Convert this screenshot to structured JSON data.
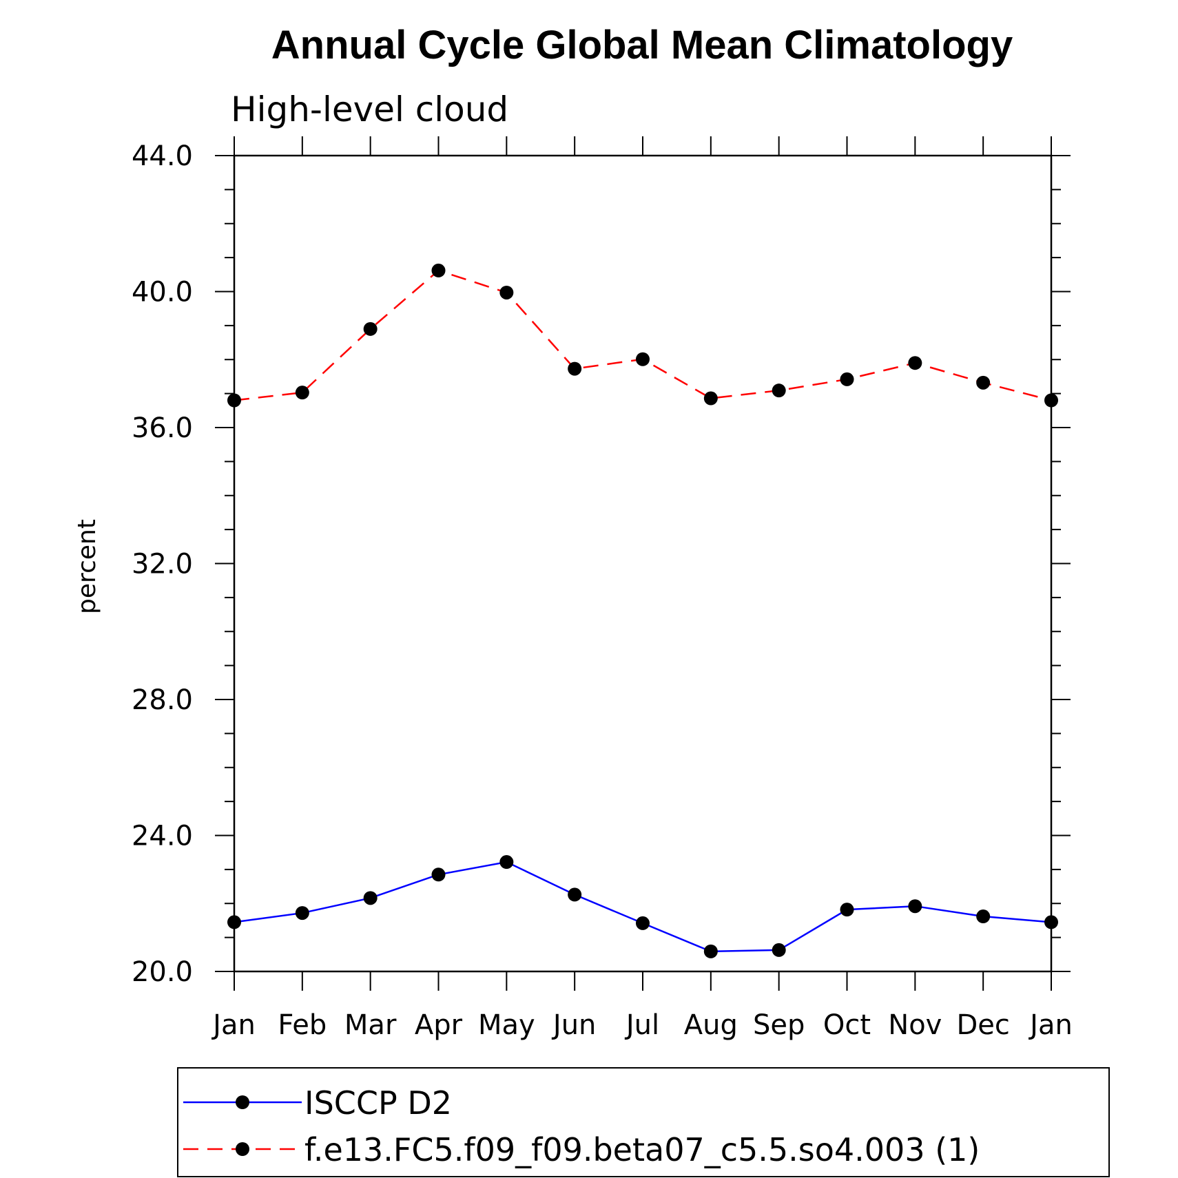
{
  "chart_data": {
    "type": "line",
    "title": "Annual Cycle Global Mean Climatology",
    "subtitle": "High-level cloud",
    "ylabel": "percent",
    "ylim": [
      20.0,
      44.0
    ],
    "yticks": [
      "20.0",
      "24.0",
      "28.0",
      "32.0",
      "36.0",
      "40.0",
      "44.0"
    ],
    "categories": [
      "Jan",
      "Feb",
      "Mar",
      "Apr",
      "May",
      "Jun",
      "Jul",
      "Aug",
      "Sep",
      "Oct",
      "Nov",
      "Dec",
      "Jan"
    ],
    "series": [
      {
        "name": "ISCCP D2",
        "color": "#0000ff",
        "style": "solid",
        "marker": "filled-circle",
        "values": [
          21.45,
          21.72,
          22.16,
          22.85,
          23.22,
          22.26,
          21.42,
          20.59,
          20.63,
          21.82,
          21.92,
          21.62,
          21.45
        ]
      },
      {
        "name": "f.e13.FC5.f09_f09.beta07_c5.5.so4.003 (1)",
        "color": "#ff0000",
        "style": "dashed",
        "marker": "filled-circle",
        "values": [
          36.8,
          37.03,
          38.9,
          40.62,
          39.97,
          37.73,
          38.01,
          36.86,
          37.09,
          37.42,
          37.9,
          37.32,
          36.8
        ]
      }
    ],
    "grid": false,
    "legend_position": "bottom"
  }
}
